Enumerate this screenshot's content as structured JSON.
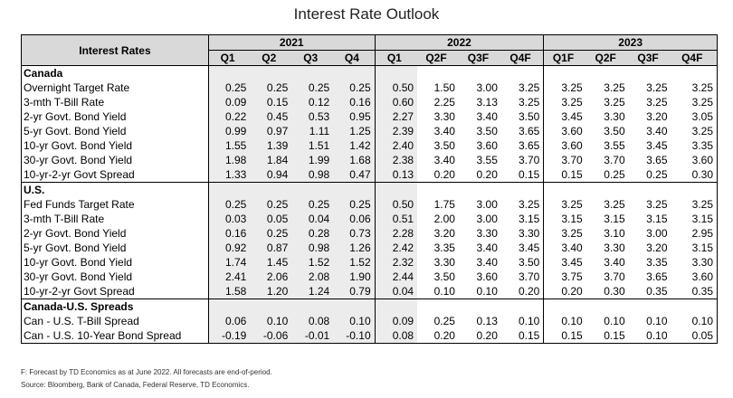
{
  "title": "Interest Rate Outlook",
  "header": {
    "row_label": "Interest Rates",
    "years": [
      "2021",
      "2022",
      "2023"
    ],
    "quarters": [
      "Q1",
      "Q2",
      "Q3",
      "Q4",
      "Q1",
      "Q2F",
      "Q3F",
      "Q4F",
      "Q1F",
      "Q2F",
      "Q3F",
      "Q4F"
    ]
  },
  "sections": [
    {
      "name": "Canada",
      "rows": [
        {
          "label": "Overnight Target Rate",
          "values": [
            "0.25",
            "0.25",
            "0.25",
            "0.25",
            "0.50",
            "1.50",
            "3.00",
            "3.25",
            "3.25",
            "3.25",
            "3.25",
            "3.25"
          ]
        },
        {
          "label": "3-mth T-Bill Rate",
          "values": [
            "0.09",
            "0.15",
            "0.12",
            "0.16",
            "0.60",
            "2.25",
            "3.13",
            "3.25",
            "3.25",
            "3.25",
            "3.25",
            "3.25"
          ]
        },
        {
          "label": "2-yr Govt. Bond Yield",
          "values": [
            "0.22",
            "0.45",
            "0.53",
            "0.95",
            "2.27",
            "3.30",
            "3.40",
            "3.50",
            "3.45",
            "3.30",
            "3.20",
            "3.05"
          ]
        },
        {
          "label": "5-yr Govt. Bond Yield",
          "values": [
            "0.99",
            "0.97",
            "1.11",
            "1.25",
            "2.39",
            "3.40",
            "3.50",
            "3.65",
            "3.60",
            "3.50",
            "3.40",
            "3.25"
          ]
        },
        {
          "label": "10-yr Govt. Bond Yield",
          "values": [
            "1.55",
            "1.39",
            "1.51",
            "1.42",
            "2.40",
            "3.50",
            "3.60",
            "3.65",
            "3.60",
            "3.55",
            "3.45",
            "3.35"
          ]
        },
        {
          "label": "30-yr Govt. Bond Yield",
          "values": [
            "1.98",
            "1.84",
            "1.99",
            "1.68",
            "2.38",
            "3.40",
            "3.55",
            "3.70",
            "3.70",
            "3.70",
            "3.65",
            "3.60"
          ]
        },
        {
          "label": "10-yr-2-yr Govt Spread",
          "values": [
            "1.33",
            "0.94",
            "0.98",
            "0.47",
            "0.13",
            "0.20",
            "0.20",
            "0.15",
            "0.15",
            "0.25",
            "0.25",
            "0.30"
          ]
        }
      ]
    },
    {
      "name": "U.S.",
      "rows": [
        {
          "label": "Fed Funds Target Rate",
          "values": [
            "0.25",
            "0.25",
            "0.25",
            "0.25",
            "0.50",
            "1.75",
            "3.00",
            "3.25",
            "3.25",
            "3.25",
            "3.25",
            "3.25"
          ]
        },
        {
          "label": "3-mth T-Bill Rate",
          "values": [
            "0.03",
            "0.05",
            "0.04",
            "0.06",
            "0.51",
            "2.00",
            "3.00",
            "3.15",
            "3.15",
            "3.15",
            "3.15",
            "3.15"
          ]
        },
        {
          "label": "2-yr Govt. Bond Yield",
          "values": [
            "0.16",
            "0.25",
            "0.28",
            "0.73",
            "2.28",
            "3.20",
            "3.30",
            "3.30",
            "3.25",
            "3.10",
            "3.00",
            "2.95"
          ]
        },
        {
          "label": "5-yr Govt. Bond Yield",
          "values": [
            "0.92",
            "0.87",
            "0.98",
            "1.26",
            "2.42",
            "3.35",
            "3.40",
            "3.45",
            "3.40",
            "3.30",
            "3.20",
            "3.15"
          ]
        },
        {
          "label": "10-yr Govt. Bond Yield",
          "values": [
            "1.74",
            "1.45",
            "1.52",
            "1.52",
            "2.32",
            "3.30",
            "3.40",
            "3.50",
            "3.45",
            "3.40",
            "3.35",
            "3.30"
          ]
        },
        {
          "label": "30-yr Govt. Bond Yield",
          "values": [
            "2.41",
            "2.06",
            "2.08",
            "1.90",
            "2.44",
            "3.50",
            "3.60",
            "3.70",
            "3.75",
            "3.70",
            "3.65",
            "3.60"
          ]
        },
        {
          "label": "10-yr-2-yr Govt Spread",
          "values": [
            "1.58",
            "1.20",
            "1.24",
            "0.79",
            "0.04",
            "0.10",
            "0.10",
            "0.20",
            "0.20",
            "0.30",
            "0.35",
            "0.35"
          ]
        }
      ]
    },
    {
      "name": "Canada-U.S. Spreads",
      "rows": [
        {
          "label": "Can - U.S. T-Bill Spread",
          "values": [
            "0.06",
            "0.10",
            "0.08",
            "0.10",
            "0.09",
            "0.25",
            "0.13",
            "0.10",
            "0.10",
            "0.10",
            "0.10",
            "0.10"
          ]
        },
        {
          "label": "Can - U.S. 10-Year Bond Spread",
          "values": [
            "-0.19",
            "-0.06",
            "-0.01",
            "-0.10",
            "0.08",
            "0.20",
            "0.20",
            "0.15",
            "0.15",
            "0.15",
            "0.10",
            "0.05"
          ]
        }
      ]
    }
  ],
  "footnotes": [
    "F: Forecast by TD Economics as at June 2022. All forecasts are end-of-period.",
    "Source: Bloomberg, Bank of Canada, Federal Reserve, TD Economics."
  ],
  "colors": {
    "header_bg": "#d9d9d9",
    "actual_shade": "#ececec",
    "border": "#000000"
  }
}
